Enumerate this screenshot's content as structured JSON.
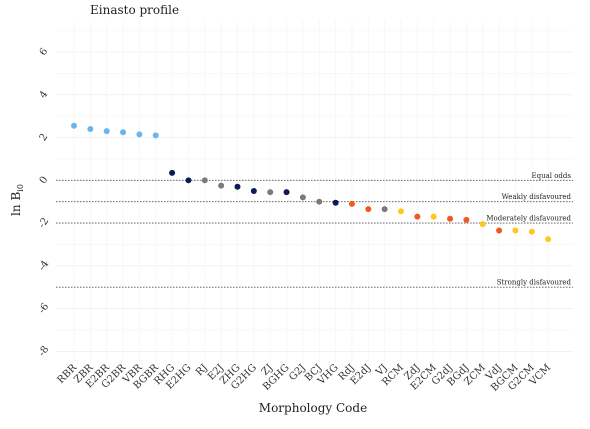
{
  "chart_data": {
    "type": "scatter",
    "title": "Einasto profile",
    "xlabel": "Morphology Code",
    "ylabel": "ln B",
    "ylabel_sub": "i0",
    "ylim": [
      -8.5,
      7.5
    ],
    "yticks": [
      6,
      4,
      2,
      0,
      -2,
      -4,
      -6,
      -8
    ],
    "grid": true,
    "categories": [
      "RBR",
      "ZBR",
      "E2BR",
      "G2BR",
      "VBR",
      "BGBR",
      "RHG",
      "E2HG",
      "RJ",
      "E2J",
      "ZHG",
      "G2HG",
      "ZJ",
      "BGHG",
      "G2J",
      "BCJ",
      "VHG",
      "RdJ",
      "E2dJ",
      "VJ",
      "RCM",
      "ZdJ",
      "E2CM",
      "G2dJ",
      "BGdJ",
      "ZCM",
      "VdJ",
      "BGCM",
      "G2CM",
      "VCM"
    ],
    "values": [
      2.55,
      2.4,
      2.3,
      2.25,
      2.15,
      2.1,
      0.35,
      0.0,
      0.0,
      -0.25,
      -0.3,
      -0.5,
      -0.55,
      -0.55,
      -0.8,
      -1.0,
      -1.05,
      -1.1,
      -1.35,
      -1.35,
      -1.45,
      -1.7,
      -1.7,
      -1.8,
      -1.85,
      -2.05,
      -2.35,
      -2.35,
      -2.4,
      -2.75
    ],
    "colors": [
      "#6bb5ea",
      "#6bb5ea",
      "#6bb5ea",
      "#6bb5ea",
      "#6bb5ea",
      "#6bb5ea",
      "#0c1a55",
      "#0c1a55",
      "#7a7a7a",
      "#7a7a7a",
      "#0c1a55",
      "#0c1a55",
      "#7a7a7a",
      "#0c1a55",
      "#7a7a7a",
      "#7a7a7a",
      "#0c1a55",
      "#f05a22",
      "#f05a22",
      "#7a7a7a",
      "#ffc81e",
      "#f05a22",
      "#ffc81e",
      "#f05a22",
      "#f05a22",
      "#ffc81e",
      "#f05a22",
      "#ffc81e",
      "#ffc81e",
      "#ffc81e"
    ],
    "reference_lines": [
      {
        "y": 0,
        "label": "Equal odds"
      },
      {
        "y": -1,
        "label": "Weakly disfavoured"
      },
      {
        "y": -2,
        "label": "Moderately disfavoured"
      },
      {
        "y": -5,
        "label": "Strongly disfavoured"
      }
    ]
  }
}
